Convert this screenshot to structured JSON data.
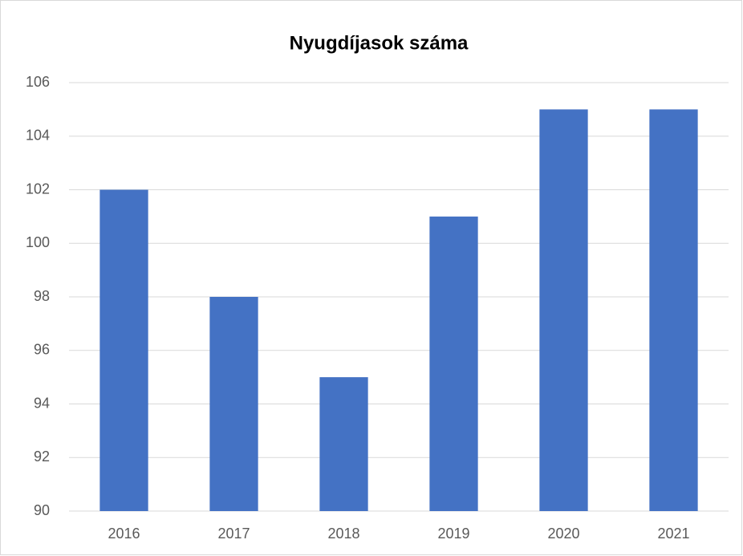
{
  "chart_data": {
    "type": "bar",
    "title": "Nyugdíjasok száma",
    "categories": [
      "2016",
      "2017",
      "2018",
      "2019",
      "2020",
      "2021"
    ],
    "values": [
      102,
      98,
      95,
      101,
      105,
      105
    ],
    "color": "#4472c4",
    "ylim": [
      90,
      106
    ],
    "yticks": [
      90,
      92,
      94,
      96,
      98,
      100,
      102,
      104,
      106
    ],
    "grid": true
  }
}
